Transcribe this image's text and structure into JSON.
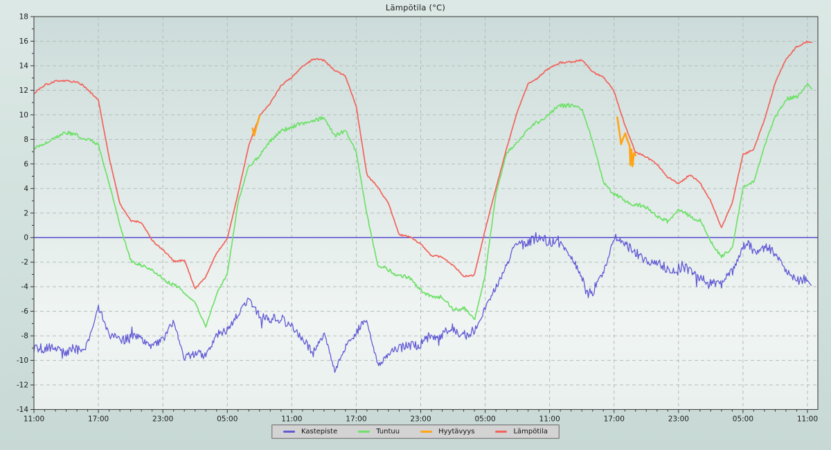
{
  "title": "Lämpötila (°C)",
  "colors": {
    "page_bg_top": "#dce8e5",
    "page_bg_bottom": "#c8d9d5",
    "plot_bg_top": "#ccdcda",
    "plot_bg_bottom": "#f0f5f3",
    "grid": "#b3bdba",
    "frame": "#4f4f4f",
    "tick": "#2f2f2f",
    "text": "#1a1a1a",
    "kastepiste": "#6159d4",
    "tuntuu": "#6fe069",
    "hyytavyys": "#ffa416",
    "lampotila": "#f2625a",
    "zero_line": "#4a40d0",
    "legend_bg": "#d3d3d3",
    "legend_border": "#828282"
  },
  "legend": {
    "items": [
      {
        "id": "kastepiste",
        "label": "Kastepiste",
        "color": "#6159d4"
      },
      {
        "id": "tuntuu",
        "label": "Tuntuu",
        "color": "#6fe069"
      },
      {
        "id": "hyytavyys",
        "label": "Hyytävyys",
        "color": "#ffa416"
      },
      {
        "id": "lampotila",
        "label": "Lämpötila",
        "color": "#f2625a"
      }
    ]
  },
  "chart_data": {
    "type": "line",
    "title": "Lämpötila (°C)",
    "x_unit": "hours_from_start",
    "x_range_hours": 72,
    "x_major_step_hours": 6,
    "x_minor_step_hours": 1,
    "x_tick_labels": [
      "11:00",
      "17:00",
      "23:00",
      "05:00",
      "11:00",
      "17:00",
      "23:00",
      "05:00",
      "11:00",
      "17:00",
      "23:00",
      "05:00",
      "11:00"
    ],
    "ylim": [
      -14,
      18
    ],
    "y_major_step": 2,
    "y_minor_step": 1,
    "y_tick_labels": [
      "18",
      "16",
      "14",
      "12",
      "10",
      "8",
      "6",
      "4",
      "2",
      "0",
      "-2",
      "-4",
      "-6",
      "-8",
      "-10",
      "-12",
      "-14"
    ],
    "grid": "dashed",
    "zero_line": {
      "value": 0,
      "color": "#4a40d0"
    },
    "legend_position": "bottom-center",
    "series": [
      {
        "name": "Lämpötila",
        "color": "#f2625a",
        "width": 1.7,
        "noise": 0.1,
        "values_hourly": [
          11.8,
          12.4,
          12.7,
          12.8,
          12.7,
          12.1,
          11.2,
          6.5,
          2.8,
          1.4,
          1.2,
          -0.2,
          -1.0,
          -1.9,
          -1.8,
          -4.2,
          -3.2,
          -1.2,
          -0.1,
          3.6,
          7.5,
          9.9,
          11.0,
          12.4,
          13.0,
          14.0,
          14.5,
          14.5,
          13.6,
          13.1,
          10.7,
          5.1,
          4.1,
          2.8,
          0.2,
          0.1,
          -0.5,
          -1.5,
          -1.6,
          -2.2,
          -3.2,
          -3.0,
          0.6,
          4.0,
          7.3,
          10.3,
          12.5,
          13.1,
          13.8,
          14.3,
          14.3,
          14.4,
          13.5,
          13.1,
          11.9,
          9.2,
          6.9,
          6.6,
          6.0,
          4.9,
          4.4,
          5.1,
          4.5,
          3.0,
          0.8,
          2.8,
          6.8,
          7.2,
          9.6,
          12.6,
          14.5,
          15.6,
          16.0
        ],
        "tail": [
          72.4,
          15.9
        ]
      },
      {
        "name": "Hyytävyys",
        "color": "#ffa416",
        "width": 2.6,
        "segments": [
          [
            [
              20.35,
              8.9
            ],
            [
              20.5,
              8.3
            ],
            [
              20.7,
              9.0
            ],
            [
              21.0,
              9.9
            ]
          ],
          [
            [
              54.3,
              9.8
            ],
            [
              54.5,
              8.6
            ],
            [
              54.65,
              7.6
            ],
            [
              54.85,
              8.1
            ],
            [
              55.05,
              8.5
            ],
            [
              55.25,
              7.9
            ],
            [
              55.45,
              7.5
            ],
            [
              55.52,
              5.9
            ],
            [
              55.62,
              7.2
            ],
            [
              55.72,
              5.8
            ],
            [
              55.85,
              6.9
            ],
            [
              56.0,
              6.7
            ]
          ]
        ]
      },
      {
        "name": "Tuntuu",
        "color": "#6fe069",
        "width": 1.7,
        "noise": 0.22,
        "values_hourly": [
          7.3,
          7.8,
          8.1,
          8.5,
          8.4,
          7.9,
          7.6,
          4.4,
          1.0,
          -1.8,
          -2.2,
          -2.7,
          -3.3,
          -3.9,
          -4.4,
          -5.3,
          -7.3,
          -4.6,
          -2.9,
          2.8,
          5.9,
          6.6,
          7.9,
          8.8,
          9.0,
          9.2,
          9.6,
          9.7,
          8.4,
          8.7,
          6.9,
          1.9,
          -2.2,
          -2.7,
          -3.0,
          -3.4,
          -4.2,
          -4.8,
          -4.9,
          -5.9,
          -5.6,
          -6.8,
          -3.0,
          3.5,
          6.9,
          7.8,
          8.9,
          9.4,
          10.1,
          10.7,
          10.9,
          10.5,
          7.8,
          4.6,
          3.5,
          3.0,
          2.7,
          2.4,
          1.8,
          1.4,
          2.2,
          1.8,
          1.4,
          -0.3,
          -1.5,
          -0.9,
          4.0,
          4.6,
          7.4,
          9.9,
          11.2,
          11.4,
          12.6
        ],
        "tail": [
          72.4,
          12.1
        ]
      },
      {
        "name": "Kastepiste",
        "color": "#6159d4",
        "width": 1.3,
        "noise": 0.55,
        "values_hourly": [
          -9.0,
          -9.3,
          -8.8,
          -9.4,
          -9.1,
          -8.6,
          -5.8,
          -7.8,
          -8.1,
          -8.4,
          -8.0,
          -9.0,
          -8.3,
          -6.7,
          -10.0,
          -9.6,
          -9.3,
          -8.1,
          -7.4,
          -6.3,
          -5.2,
          -6.1,
          -6.5,
          -6.9,
          -7.0,
          -8.4,
          -9.3,
          -7.8,
          -11.0,
          -8.9,
          -7.5,
          -6.9,
          -10.2,
          -9.7,
          -8.8,
          -8.6,
          -8.7,
          -8.1,
          -7.8,
          -7.5,
          -7.7,
          -7.7,
          -5.9,
          -3.9,
          -2.2,
          -0.4,
          -0.3,
          -0.2,
          -0.1,
          -0.3,
          -1.8,
          -3.3,
          -4.6,
          -2.9,
          0.2,
          -0.8,
          -1.2,
          -1.6,
          -2.3,
          -2.6,
          -2.6,
          -2.6,
          -3.1,
          -3.7,
          -4.0,
          -2.4,
          -0.9,
          -0.8,
          -0.9,
          -1.4,
          -2.6,
          -3.3,
          -3.6
        ],
        "tail": [
          72.35,
          -3.9
        ]
      }
    ]
  }
}
